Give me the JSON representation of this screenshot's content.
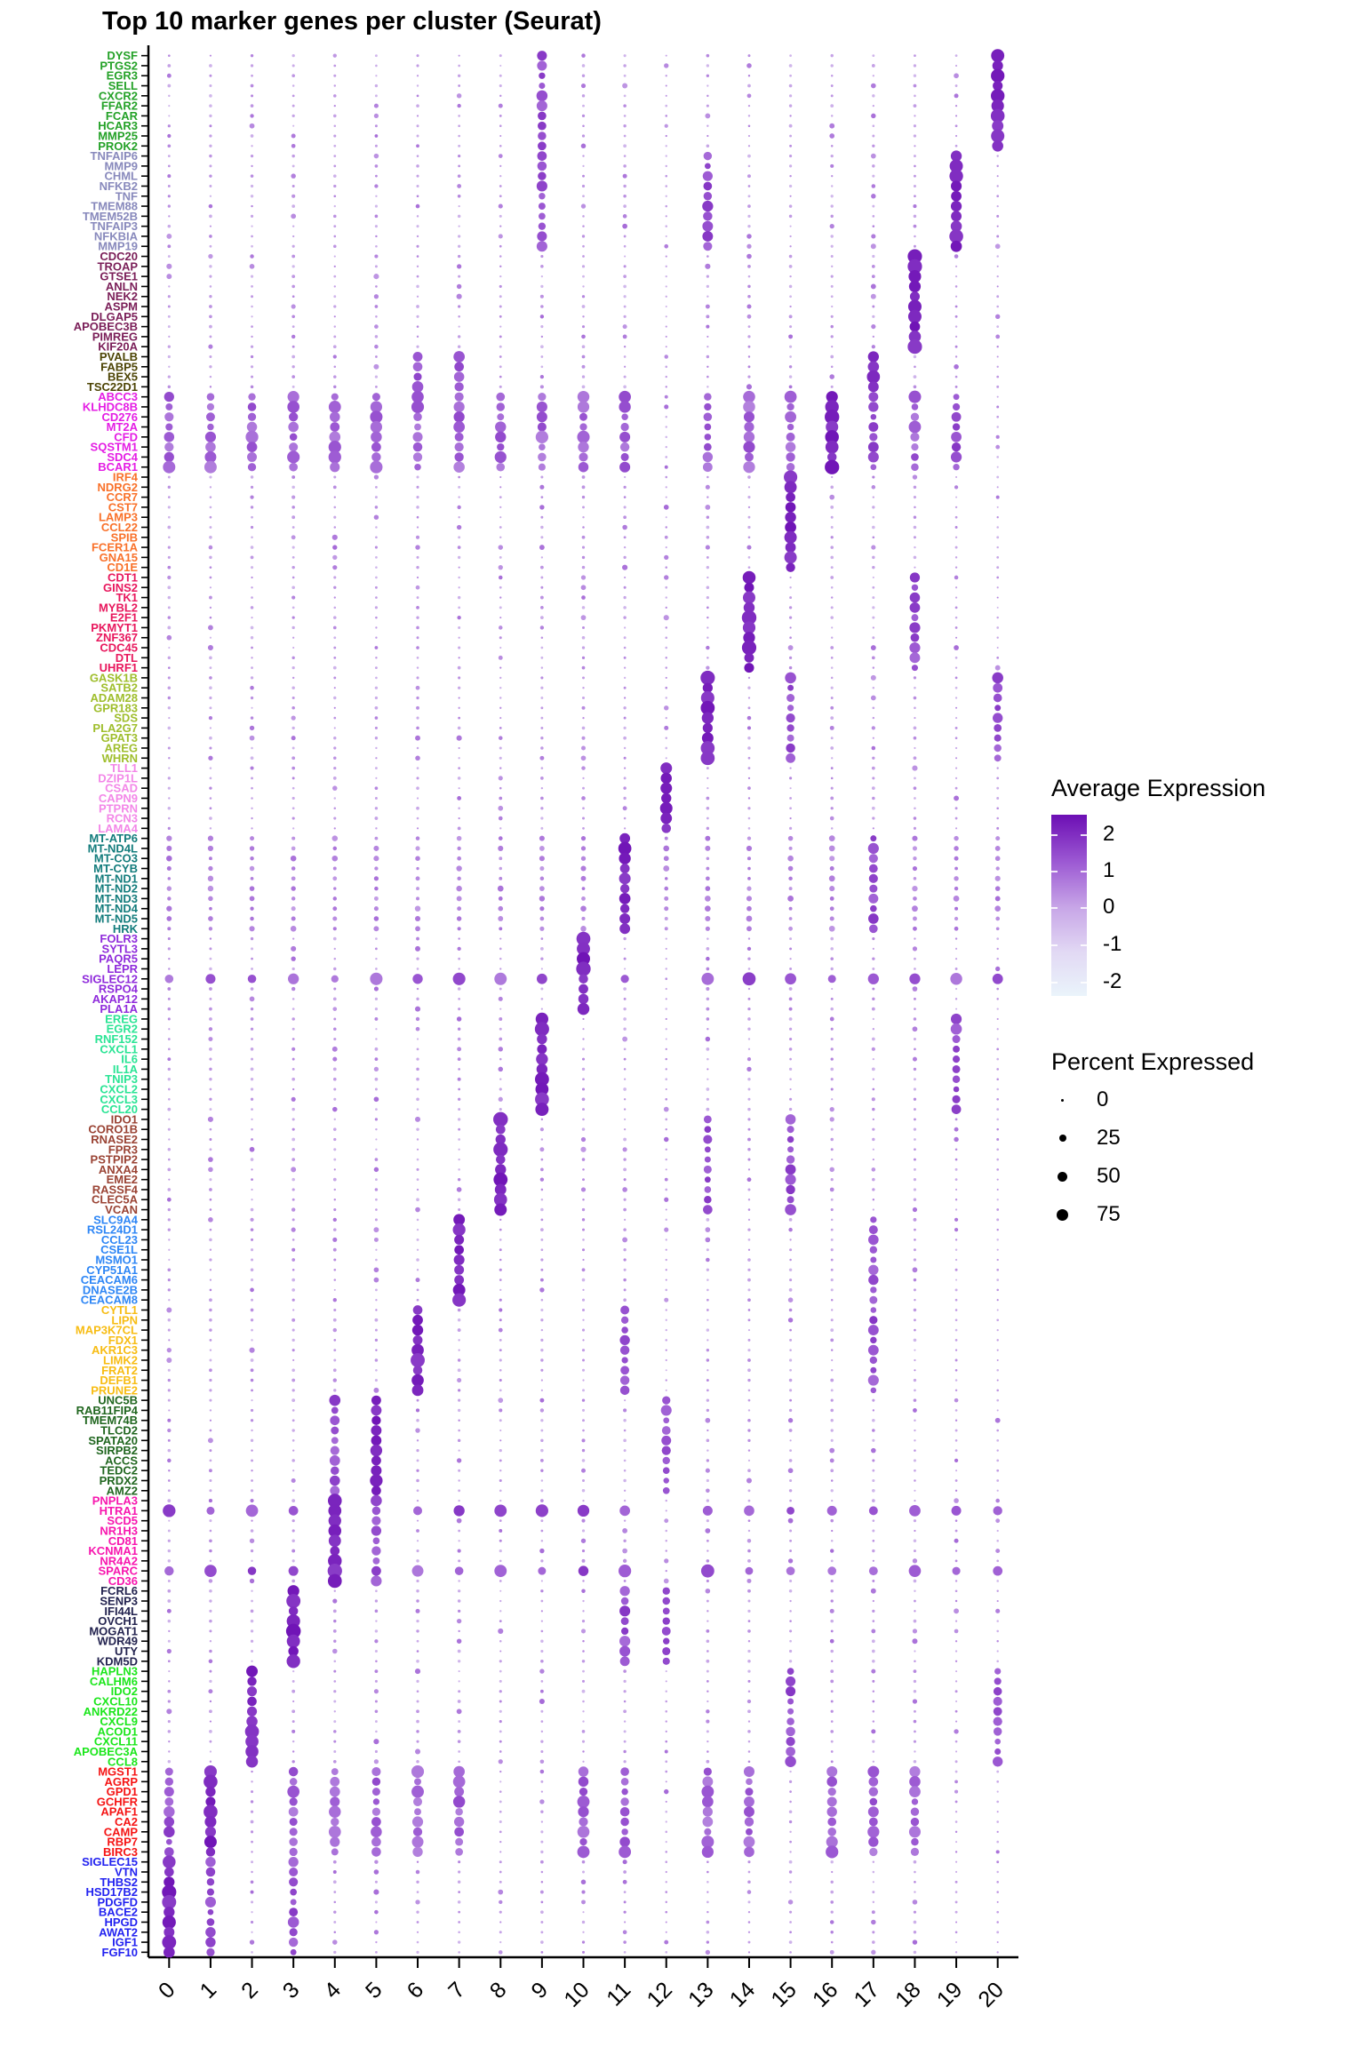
{
  "title": "Top 10 marker genes per cluster (Seurat)",
  "x_axis": {
    "clusters": [
      "0",
      "1",
      "2",
      "3",
      "4",
      "5",
      "6",
      "7",
      "8",
      "9",
      "10",
      "11",
      "12",
      "13",
      "14",
      "15",
      "16",
      "17",
      "18",
      "19",
      "20"
    ]
  },
  "legend": {
    "expression": {
      "title": "Average Expression",
      "ticks": [
        "2",
        "1",
        "0",
        "-1",
        "-2"
      ],
      "color_high": "#6C0EB4",
      "color_mid": "#C7A5E7",
      "color_low": "#EAF4FB"
    },
    "percent": {
      "title": "Percent Expressed",
      "ticks": [
        "0",
        "25",
        "50",
        "75"
      ]
    }
  },
  "chart_data": {
    "type": "dotplot",
    "x_label": "",
    "y_label": "",
    "clusters": [
      0,
      1,
      2,
      3,
      4,
      5,
      6,
      7,
      8,
      9,
      10,
      11,
      12,
      13,
      14,
      15,
      16,
      17,
      18,
      19,
      20
    ],
    "expression_domain": [
      -2.6,
      2.6
    ],
    "color_stops": [
      "#E9F4FB",
      "#E2D9F4",
      "#C7A5E7",
      "#9C59D3",
      "#6C0EB4"
    ],
    "percent_to_radius": {
      "min_r": 0.9,
      "max_r": 8.7
    },
    "groups": [
      {
        "cluster": 20,
        "color": "#23A127",
        "genes": [
          "DYSF",
          "PTGS2",
          "EGR3",
          "SELL",
          "CXCR2",
          "FFAR2",
          "FCAR",
          "HCAR3",
          "MMP25",
          "PROK2"
        ],
        "secondary": [
          9
        ]
      },
      {
        "cluster": 19,
        "color": "#8889BC",
        "genes": [
          "TNFAIP6",
          "MMP9",
          "CHML",
          "NFKB2",
          "TNF",
          "TMEM88",
          "TMEM52B",
          "TNFAIP3",
          "NFKBIA",
          "MMP19"
        ],
        "secondary": [
          9,
          13
        ]
      },
      {
        "cluster": 18,
        "color": "#7A1E58",
        "genes": [
          "CDC20",
          "TROAP",
          "GTSE1",
          "ANLN",
          "NEK2",
          "ASPM",
          "DLGAP5",
          "APOBEC3B",
          "PIMREG",
          "KIF20A"
        ],
        "secondary": []
      },
      {
        "cluster": 17,
        "color": "#4D4405",
        "genes": [
          "PVALB",
          "FABP5",
          "BEX5",
          "TSC22D1"
        ],
        "secondary": [
          6,
          7
        ]
      },
      {
        "cluster": 16,
        "color": "#E41DE4",
        "genes": [
          "ABCC3",
          "KLHDC8B",
          "CD276",
          "MT2A",
          "CFD",
          "SQSTM1",
          "SDC4",
          "BCAR1"
        ],
        "secondary": [
          17,
          19
        ],
        "elevated": [
          0,
          1,
          2,
          3,
          4,
          5,
          6,
          7,
          8,
          9,
          10,
          11,
          13,
          14,
          15,
          18
        ]
      },
      {
        "cluster": 15,
        "color": "#F9712A",
        "genes": [
          "IRF4",
          "NDRG2",
          "CCR7",
          "CST7",
          "LAMP3",
          "CCL22",
          "SPIB",
          "FCER1A",
          "GNA15",
          "CD1E"
        ],
        "secondary": []
      },
      {
        "cluster": 14,
        "color": "#E8175D",
        "genes": [
          "CDT1",
          "GINS2",
          "TK1",
          "MYBL2",
          "E2F1",
          "PKMYT1",
          "ZNF367",
          "CDC45",
          "DTL",
          "UHRF1"
        ],
        "secondary": [
          18
        ]
      },
      {
        "cluster": 13,
        "color": "#9FBE2C",
        "genes": [
          "GASK1B",
          "SATB2",
          "ADAM28",
          "GPR183",
          "SDS",
          "PLA2G7",
          "GPAT3",
          "AREG",
          "WHRN"
        ],
        "secondary": [
          15,
          20
        ]
      },
      {
        "cluster": 12,
        "color": "#F387E8",
        "genes": [
          "TLL1",
          "DZIP1L",
          "CSAD",
          "CAPN9",
          "PTPRN",
          "RCN3",
          "LAMA4"
        ],
        "secondary": []
      },
      {
        "cluster": 11,
        "color": "#137C7C",
        "genes": [
          "MT-ATP6",
          "MT-ND4L",
          "MT-CO3",
          "MT-CYB",
          "MT-ND1",
          "MT-ND2",
          "MT-ND3",
          "MT-ND4",
          "MT-ND5",
          "HRK"
        ],
        "secondary": [
          17
        ],
        "mild": true
      },
      {
        "cluster": 10,
        "color": "#8F2BDB",
        "genes": [
          "FOLR3",
          "SYTL3",
          "PAQR5",
          "LEPR",
          "SIGLEC12",
          "RSPO4",
          "AKAP12",
          "PLA1A"
        ],
        "secondary": [],
        "broad_rows": [
          4
        ]
      },
      {
        "cluster": 9,
        "color": "#2BE495",
        "genes": [
          "EREG",
          "EGR2",
          "RNF152",
          "CXCL1",
          "IL6",
          "IL1A",
          "TNIP3",
          "CXCL2",
          "CXCL3",
          "CCL20"
        ],
        "secondary": [
          19
        ]
      },
      {
        "cluster": 8,
        "color": "#9A4334",
        "genes": [
          "IDO1",
          "CORO1B",
          "RNASE2",
          "FPR3",
          "PSTPIP2",
          "ANXA4",
          "EME2",
          "RASSF4",
          "CLEC5A",
          "VCAN"
        ],
        "secondary": [
          13,
          15
        ]
      },
      {
        "cluster": 7,
        "color": "#2E86F5",
        "genes": [
          "SLC9A4",
          "RSL24D1",
          "CCL23",
          "CSE1L",
          "MSMO1",
          "CYP51A1",
          "CEACAM6",
          "DNASE2B",
          "CEACAM8"
        ],
        "secondary": [
          17
        ]
      },
      {
        "cluster": 6,
        "color": "#F7BC13",
        "genes": [
          "CYTL1",
          "LIPN",
          "MAP3K7CL",
          "FDX1",
          "AKR1C3",
          "LIMK2",
          "FRAT2",
          "DEFB1",
          "PRUNE2"
        ],
        "secondary": [
          11,
          17
        ]
      },
      {
        "cluster": 5,
        "color": "#20661F",
        "genes": [
          "UNC5B",
          "RAB11FIP4",
          "TMEM74B",
          "TLCD2",
          "SPATA20",
          "SIRPB2",
          "ACCS",
          "TEDC2",
          "PRDX2",
          "AMZ2"
        ],
        "secondary": [
          4,
          12
        ]
      },
      {
        "cluster": 4,
        "color": "#F716AE",
        "genes": [
          "PNPLA3",
          "HTRA1",
          "SCD5",
          "NR1H3",
          "CD81",
          "KCNMA1",
          "NR4A2",
          "SPARC",
          "CD36"
        ],
        "secondary": [
          5
        ],
        "broad_rows": [
          1,
          7
        ]
      },
      {
        "cluster": 3,
        "color": "#23234F",
        "genes": [
          "FCRL6",
          "SENP3",
          "IFI44L",
          "OVCH1",
          "MOGAT1",
          "WDR49",
          "UTY",
          "KDM5D"
        ],
        "secondary": [
          11,
          12
        ]
      },
      {
        "cluster": 2,
        "color": "#1BE61B",
        "genes": [
          "HAPLN3",
          "CALHM6",
          "IDO2",
          "CXCL10",
          "ANKRD22",
          "CXCL9",
          "ACOD1",
          "CXCL11",
          "APOBEC3A",
          "CCL8"
        ],
        "secondary": [
          15,
          20
        ]
      },
      {
        "cluster": 1,
        "color": "#F51414",
        "genes": [
          "MGST1",
          "AGRP",
          "GPD1",
          "GCHFR",
          "APAF1",
          "CA2",
          "CAMP",
          "RBP7",
          "BIRC3"
        ],
        "secondary": [
          0
        ],
        "elevated": [
          0,
          3,
          4,
          5,
          6,
          7,
          10,
          11,
          13,
          14,
          16,
          17,
          18
        ]
      },
      {
        "cluster": 0,
        "color": "#2222F0",
        "genes": [
          "SIGLEC15",
          "VTN",
          "THBS2",
          "HSD17B2",
          "PDGFD",
          "BACE2",
          "HPGD",
          "AWAT2",
          "IGF1",
          "FGF10"
        ],
        "secondary": [
          1,
          3
        ]
      }
    ]
  }
}
